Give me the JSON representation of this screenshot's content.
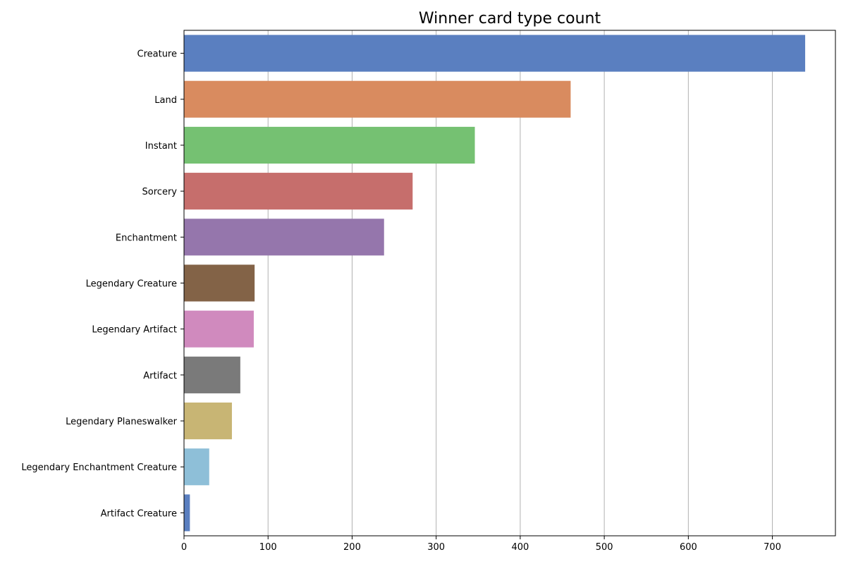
{
  "chart_data": {
    "type": "bar",
    "orientation": "horizontal",
    "title": "Winner card type count",
    "xlabel": "",
    "ylabel": "",
    "categories": [
      "Creature",
      "Land",
      "Instant",
      "Sorcery",
      "Enchantment",
      "Legendary Creature",
      "Legendary Artifact",
      "Artifact",
      "Legendary Planeswalker",
      "Legendary Enchantment Creature",
      "Artifact Creature"
    ],
    "values": [
      739,
      460,
      346,
      272,
      238,
      84,
      83,
      67,
      57,
      30,
      7
    ],
    "colors": [
      "#5a7fc0",
      "#d98b5f",
      "#75c172",
      "#c66e6c",
      "#9576ac",
      "#836347",
      "#d08abe",
      "#7a7a7a",
      "#c8b574",
      "#8ebfd8",
      "#5a7fc0"
    ],
    "xlim": [
      0,
      775
    ],
    "xticks": [
      0,
      100,
      200,
      300,
      400,
      500,
      600,
      700
    ],
    "grid": "x-axis vertical lines"
  }
}
